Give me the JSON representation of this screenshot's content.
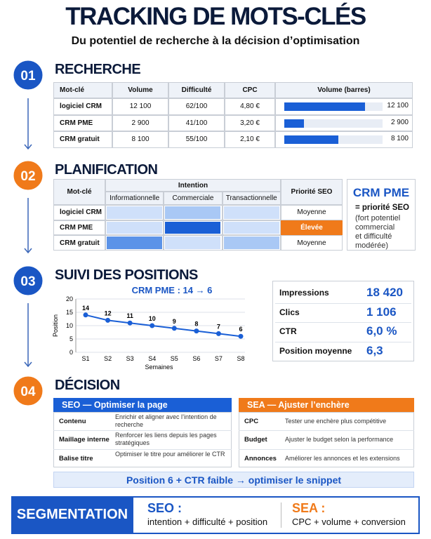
{
  "header": {
    "title": "TRACKING DE MOTS-CLÉS",
    "subtitle": "Du potentiel de recherche à la décision d’optimisation"
  },
  "research": {
    "number": "01",
    "title": "RECHERCHE",
    "columns": [
      "Mot-clé",
      "Volume",
      "Difficulté",
      "CPC",
      "Volume (barres)"
    ],
    "bar_color": "#1a5fd6",
    "rows": [
      {
        "keyword": "logiciel CRM",
        "volume": "12 100",
        "difficulty": "62/100",
        "cpc": "4,80 €",
        "volume_value": 12100
      },
      {
        "keyword": "CRM PME",
        "volume": "2 900",
        "difficulty": "41/100",
        "cpc": "3,20 €",
        "volume_value": 2900
      },
      {
        "keyword": "CRM gratuit",
        "volume": "8 100",
        "difficulty": "55/100",
        "cpc": "2,10 €",
        "volume_value": 8100
      }
    ]
  },
  "planning": {
    "number": "02",
    "title": "PLANIFICATION",
    "keyword_header": "Mot-clé",
    "intent_header": "Intention",
    "intents": [
      "Informationnelle",
      "Commerciale",
      "Transactionnelle"
    ],
    "priority_header": "Priorité SEO",
    "highlight_color": "#f07a1a",
    "rows": [
      {
        "keyword": "logiciel CRM",
        "intent_colors": [
          "#cfe0fa",
          "#a9c8f5",
          "#cfe0fa"
        ],
        "priority": "Moyenne",
        "highlight": false
      },
      {
        "keyword": "CRM PME",
        "intent_colors": [
          "#cfe0fa",
          "#1a5fd6",
          "#cfe0fa"
        ],
        "priority": "Élevée",
        "highlight": true
      },
      {
        "keyword": "CRM gratuit",
        "intent_colors": [
          "#5b93e8",
          "#cfe0fa",
          "#a9c8f5"
        ],
        "priority": "Moyenne",
        "highlight": false
      }
    ],
    "note": {
      "title": "CRM PME",
      "subtitle": "= priorité SEO",
      "lines": [
        "(fort potentiel",
        "commercial",
        "et difficulté",
        "modérée)"
      ]
    }
  },
  "tracking": {
    "number": "03",
    "title": "SUIVI DES POSITIONS",
    "metrics": [
      {
        "label": "Impressions",
        "value": "18 420"
      },
      {
        "label": "Clics",
        "value": "1 106"
      },
      {
        "label": "CTR",
        "value": "6,0 %"
      },
      {
        "label": "Position moyenne",
        "value": "6,3"
      }
    ]
  },
  "chart_data": {
    "type": "line",
    "title": "CRM PME : 14 → 6",
    "y_label": "Position",
    "x_label": "Semaines",
    "categories": [
      "S1",
      "S2",
      "S3",
      "S4",
      "S5",
      "S6",
      "S7",
      "S8"
    ],
    "values": [
      14,
      12,
      11,
      10,
      9,
      8,
      7,
      6
    ],
    "color": "#1a5fd6",
    "ylim": [
      0,
      20
    ],
    "yticks": [
      0,
      5,
      10,
      15,
      20
    ],
    "grid": true
  },
  "decision": {
    "number": "04",
    "title": "DÉCISION",
    "seo": {
      "title": "SEO — Optimiser la page",
      "color": "#1a5fd6",
      "rows": [
        [
          "Contenu",
          "Enrichir et aligner avec l’intention de recherche"
        ],
        [
          "Maillage interne",
          "Renforcer les liens depuis les pages stratégiques"
        ],
        [
          "Balise titre",
          "Optimiser le titre pour améliorer le CTR"
        ]
      ]
    },
    "sea": {
      "title": "SEA — Ajuster l’enchère",
      "color": "#f07a1a",
      "rows": [
        [
          "CPC",
          "Tester une enchère plus compétitive"
        ],
        [
          "Budget",
          "Ajuster le budget selon la performance"
        ],
        [
          "Annonces",
          "Améliorer les annonces et les extensions"
        ]
      ]
    },
    "conclusion": "Position 6 + CTR faible → optimiser le snippet"
  },
  "segmentation": {
    "title": "SEGMENTATION",
    "seo_label": "SEO :",
    "seo_text": "intention + difficulté + position",
    "sea_label": "SEA :",
    "sea_text": "CPC + volume + conversion"
  }
}
